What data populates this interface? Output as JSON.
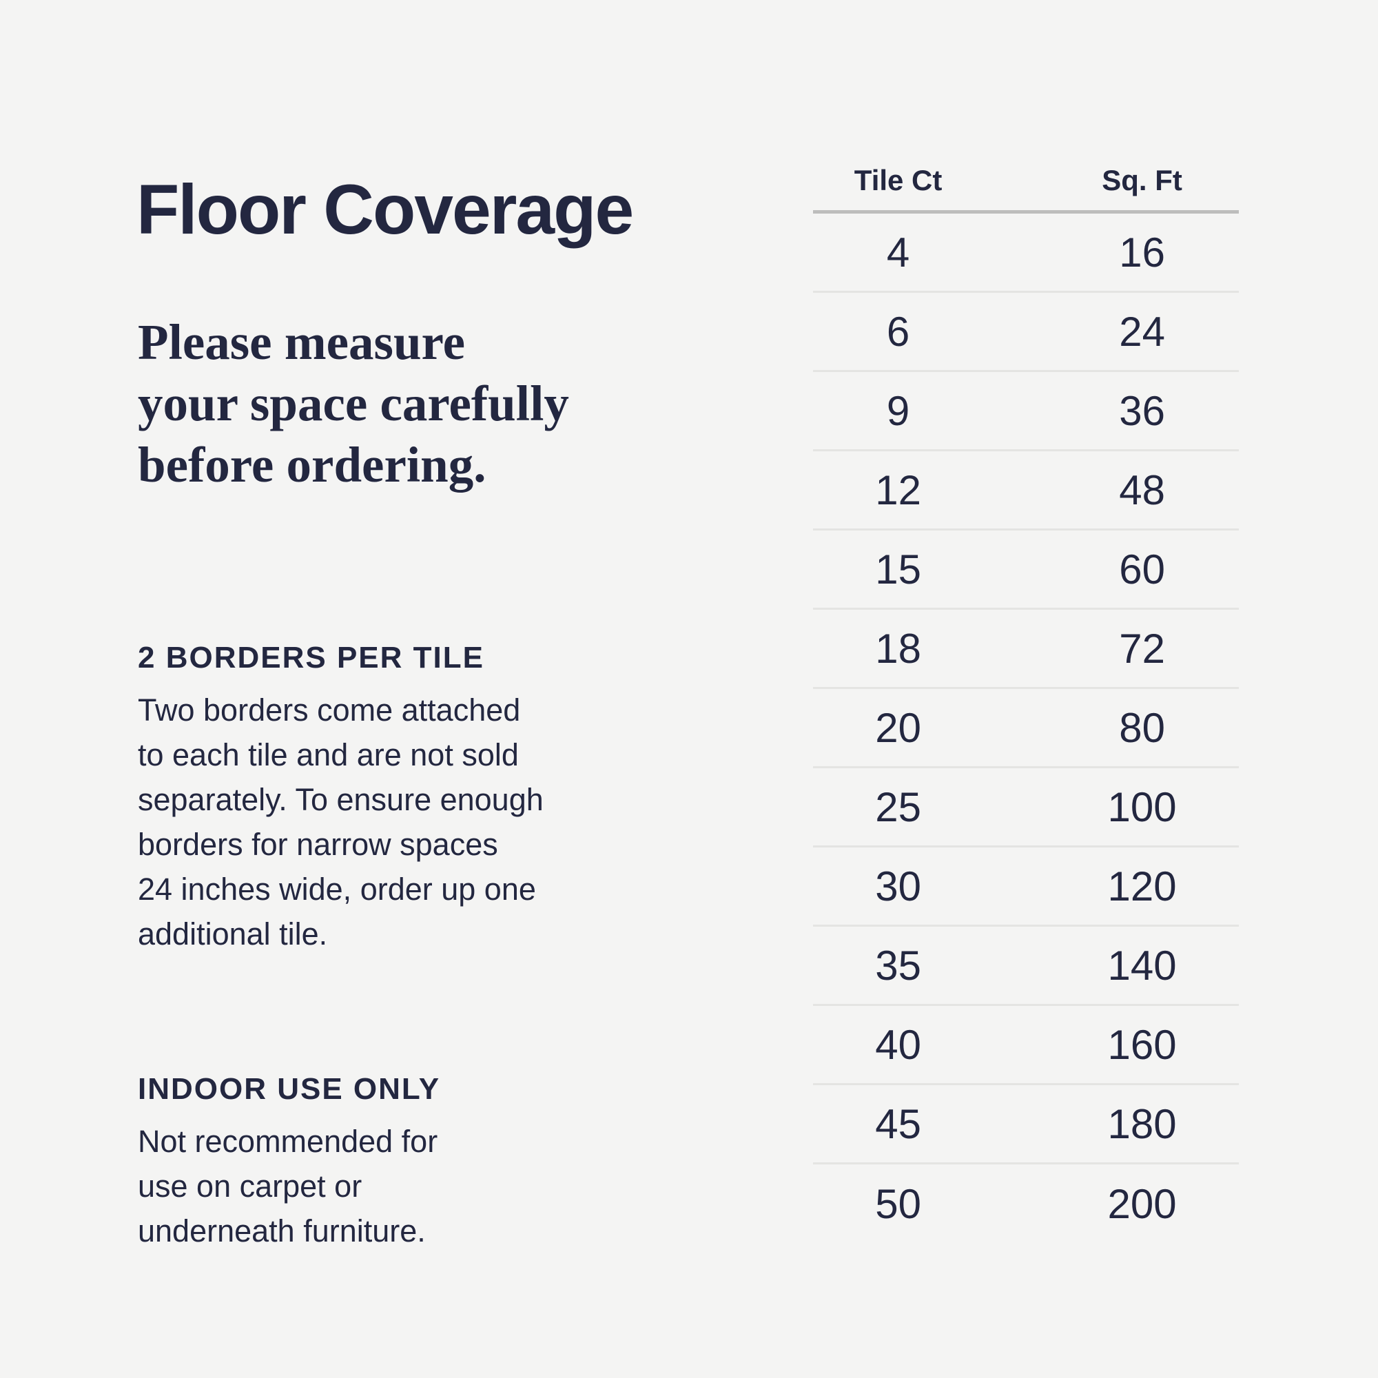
{
  "page": {
    "background_color": "#f4f4f3",
    "text_color": "#232740",
    "header_rule_color": "#bdbdbc",
    "row_rule_color": "#e4e4e2"
  },
  "title": "Floor Coverage",
  "subtitle": "Please measure\nyour space carefully\nbefore ordering.",
  "sections": [
    {
      "heading": "2 BORDERS PER TILE",
      "body": "Two borders come attached\nto each tile and are not sold\nseparately. To ensure enough\nborders for narrow spaces\n24 inches wide, order up one\nadditional tile."
    },
    {
      "heading": "INDOOR USE ONLY",
      "body": "Not recommended for\nuse on carpet or\nunderneath furniture."
    }
  ],
  "table": {
    "columns": [
      "Tile Ct",
      "Sq. Ft"
    ],
    "rows": [
      [
        4,
        16
      ],
      [
        6,
        24
      ],
      [
        9,
        36
      ],
      [
        12,
        48
      ],
      [
        15,
        60
      ],
      [
        18,
        72
      ],
      [
        20,
        80
      ],
      [
        25,
        100
      ],
      [
        30,
        120
      ],
      [
        35,
        140
      ],
      [
        40,
        160
      ],
      [
        45,
        180
      ],
      [
        50,
        200
      ]
    ]
  }
}
